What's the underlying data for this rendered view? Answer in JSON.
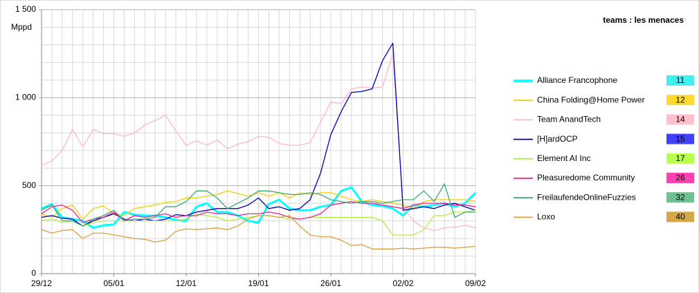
{
  "chart_data": {
    "type": "line",
    "title": "teams : les menaces",
    "ylabel": "Mppd",
    "categories": [
      "29/12",
      null,
      null,
      null,
      null,
      null,
      null,
      "05/01",
      null,
      null,
      null,
      null,
      null,
      null,
      "12/01",
      null,
      null,
      null,
      null,
      null,
      null,
      "19/01",
      null,
      null,
      null,
      null,
      null,
      null,
      "26/01",
      null,
      null,
      null,
      null,
      null,
      null,
      "02/02",
      null,
      null,
      null,
      null,
      null,
      null,
      "09/02"
    ],
    "ylim": [
      0,
      1500
    ],
    "yticks": [
      0,
      500,
      {
        "value": 1000,
        "label": "1 000"
      },
      {
        "value": 1500,
        "label": "1 500"
      }
    ],
    "yminor": [
      100,
      200,
      300,
      400,
      600,
      700,
      800,
      900,
      1100,
      1200,
      1300,
      1400
    ],
    "grid": true,
    "series": [
      {
        "name": "Alliance Francophone",
        "rank": 11,
        "color": "#00ffff",
        "rank_color": "#40f0f0",
        "width": 3,
        "values": [
          370,
          395,
          320,
          310,
          300,
          260,
          275,
          280,
          350,
          335,
          330,
          330,
          320,
          305,
          300,
          380,
          400,
          350,
          350,
          330,
          300,
          290,
          395,
          420,
          370,
          360,
          360,
          380,
          390,
          470,
          490,
          410,
          390,
          385,
          370,
          330,
          390,
          380,
          390,
          400,
          380,
          400,
          460
        ]
      },
      {
        "name": "China Folding@Home Power",
        "rank": 12,
        "color": "#f0d000",
        "rank_color": "#ffd830",
        "width": 1.3,
        "values": [
          340,
          320,
          370,
          390,
          310,
          370,
          385,
          340,
          330,
          370,
          380,
          390,
          405,
          410,
          430,
          430,
          440,
          450,
          470,
          455,
          440,
          460,
          440,
          460,
          430,
          460,
          450,
          460,
          460,
          440,
          420,
          410,
          420,
          410,
          400,
          390,
          370,
          410,
          420,
          420,
          420,
          420,
          410
        ]
      },
      {
        "name": "Team AnandTech",
        "rank": 14,
        "color": "#ffb6c8",
        "rank_color": "#ffc0cb",
        "width": 1.3,
        "values": [
          615,
          640,
          700,
          820,
          720,
          820,
          795,
          795,
          780,
          800,
          845,
          870,
          900,
          810,
          730,
          755,
          730,
          760,
          710,
          735,
          750,
          780,
          775,
          740,
          730,
          730,
          745,
          860,
          975,
          965,
          1050,
          1060,
          1055,
          1060,
          1250,
          380,
          300,
          260,
          245,
          260,
          265,
          275,
          260
        ]
      },
      {
        "name": "[H]ardOCP",
        "rank": 15,
        "color": "#0000b0",
        "rank_color": "#4040ff",
        "width": 1.3,
        "values": [
          320,
          330,
          315,
          310,
          270,
          300,
          320,
          340,
          310,
          300,
          310,
          300,
          310,
          335,
          330,
          350,
          360,
          370,
          370,
          370,
          390,
          430,
          370,
          380,
          360,
          370,
          420,
          570,
          790,
          920,
          1030,
          1035,
          1050,
          1210,
          1310,
          360,
          370,
          380,
          370,
          390,
          400,
          380,
          360
        ]
      },
      {
        "name": "Element AI Inc",
        "rank": 17,
        "color": "#b0f040",
        "rank_color": "#b8ff50",
        "width": 1.3,
        "values": [
          300,
          310,
          290,
          300,
          270,
          290,
          300,
          300,
          300,
          300,
          300,
          300,
          300,
          300,
          310,
          340,
          330,
          320,
          300,
          310,
          320,
          330,
          330,
          320,
          310,
          310,
          320,
          320,
          320,
          320,
          320,
          320,
          320,
          300,
          220,
          220,
          220,
          250,
          330,
          330,
          350,
          350,
          360
        ]
      },
      {
        "name": "Pleasuredome Community",
        "rank": 26,
        "color": "#f0208c",
        "rank_color": "#ff40b0",
        "width": 1.3,
        "values": [
          340,
          380,
          390,
          360,
          290,
          310,
          320,
          350,
          300,
          330,
          320,
          330,
          340,
          320,
          330,
          330,
          350,
          340,
          340,
          330,
          340,
          340,
          350,
          340,
          320,
          310,
          320,
          340,
          390,
          400,
          410,
          400,
          400,
          390,
          380,
          370,
          390,
          400,
          400,
          400,
          390,
          390,
          380
        ]
      },
      {
        "name": "FreilaufendeOnlineFuzzies",
        "rank": 32,
        "color": "#3caa70",
        "rank_color": "#70c090",
        "width": 1.3,
        "values": [
          360,
          390,
          300,
          300,
          270,
          310,
          330,
          360,
          300,
          310,
          310,
          320,
          380,
          380,
          410,
          470,
          470,
          430,
          370,
          400,
          430,
          470,
          470,
          460,
          450,
          450,
          460,
          450,
          420,
          410,
          400,
          410,
          410,
          400,
          410,
          420,
          420,
          470,
          410,
          510,
          320,
          350,
          350
        ]
      },
      {
        "name": "Loxo",
        "rank": 40,
        "color": "#d8a040",
        "rank_color": "#d4a84a",
        "width": 1.3,
        "values": [
          250,
          230,
          245,
          250,
          200,
          230,
          230,
          220,
          210,
          200,
          195,
          180,
          190,
          240,
          255,
          250,
          255,
          260,
          250,
          270,
          310,
          330,
          330,
          320,
          330,
          270,
          220,
          210,
          210,
          190,
          160,
          165,
          140,
          140,
          140,
          145,
          140,
          145,
          150,
          150,
          145,
          150,
          155
        ]
      }
    ]
  }
}
